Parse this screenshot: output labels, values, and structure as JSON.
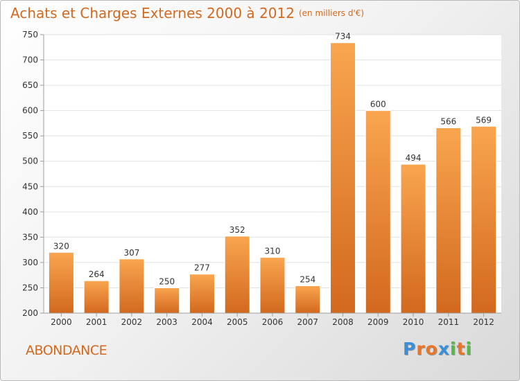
{
  "header": {
    "title": "Achats et Charges Externes 2000 à 2012",
    "unit": "(en milliers d'€)"
  },
  "footer": {
    "commune": "ABONDANCE",
    "logo": {
      "letters": [
        "P",
        "r",
        "o",
        "x",
        "i",
        "t",
        "i"
      ],
      "colors": [
        "#3a8fd8",
        "#e8762a",
        "#e8762a",
        "#3a8fd8",
        "#58b847",
        "#e8762a",
        "#58b847"
      ]
    }
  },
  "colors": {
    "bar_light": "#f9a54f",
    "bar_dark": "#d2691e",
    "grid": "#e1e1e1",
    "axis": "#9e9e9e",
    "text": "#333333",
    "accent": "#d2691e"
  },
  "chart_data": {
    "type": "bar",
    "title": "Achats et Charges Externes 2000 à 2012",
    "subtitle": "(en milliers d'€)",
    "categories": [
      "2000",
      "2001",
      "2002",
      "2003",
      "2004",
      "2005",
      "2006",
      "2007",
      "2008",
      "2009",
      "2010",
      "2011",
      "2012"
    ],
    "values": [
      320,
      264,
      307,
      250,
      277,
      352,
      310,
      254,
      734,
      600,
      494,
      566,
      569
    ],
    "ylim": [
      200,
      750
    ],
    "yticks": [
      200,
      250,
      300,
      350,
      400,
      450,
      500,
      550,
      600,
      650,
      700,
      750
    ],
    "grid": true,
    "legend": "none",
    "xlabel": "",
    "ylabel": ""
  }
}
